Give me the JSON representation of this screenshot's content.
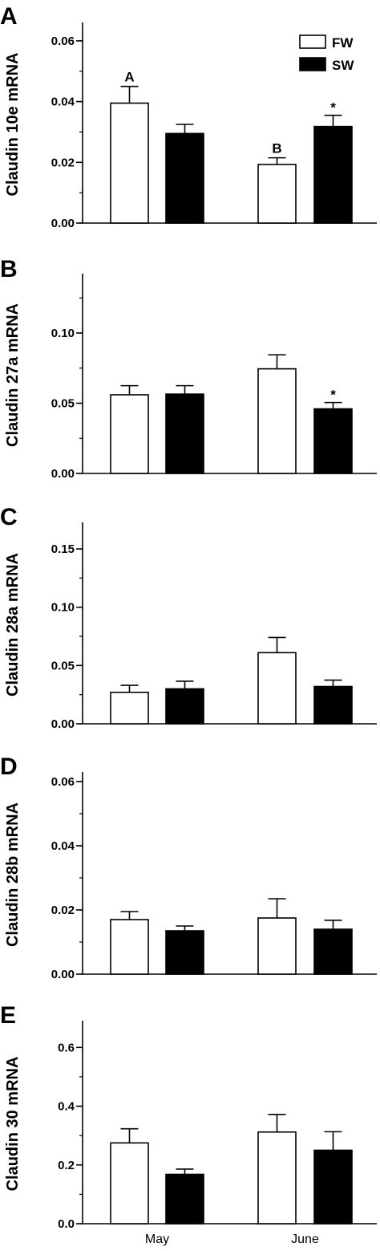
{
  "chart_data": [
    {
      "type": "bar",
      "panel": "A",
      "ylabel": "Claudin 10e mRNA",
      "categories": [
        "May",
        "June"
      ],
      "ylim": [
        0,
        0.065
      ],
      "yticks": [
        "0.00",
        "0.02",
        "0.04",
        "0.06"
      ],
      "ytick_values": [
        0,
        0.02,
        0.04,
        0.06
      ],
      "minor_step": 0.01,
      "series": [
        {
          "name": "FW",
          "fill": "#ffffff",
          "values": [
            0.0395,
            0.0193
          ],
          "errors": [
            0.0055,
            0.0022
          ],
          "annotations": [
            "A",
            "B"
          ]
        },
        {
          "name": "SW",
          "fill": "#000000",
          "values": [
            0.0295,
            0.0318
          ],
          "errors": [
            0.003,
            0.0037
          ],
          "annotations": [
            "",
            "*"
          ]
        }
      ],
      "legend": {
        "position": "top-right"
      }
    },
    {
      "type": "bar",
      "panel": "B",
      "ylabel": "Claudin 27a mRNA",
      "categories": [
        "May",
        "June"
      ],
      "ylim": [
        0,
        0.14
      ],
      "yticks": [
        "0.00",
        "0.05",
        "0.10"
      ],
      "ytick_values": [
        0,
        0.05,
        0.1
      ],
      "minor_step": 0.025,
      "series": [
        {
          "name": "FW",
          "fill": "#ffffff",
          "values": [
            0.056,
            0.0745
          ],
          "errors": [
            0.0065,
            0.01
          ],
          "annotations": [
            "",
            ""
          ]
        },
        {
          "name": "SW",
          "fill": "#000000",
          "values": [
            0.0565,
            0.046
          ],
          "errors": [
            0.006,
            0.0045
          ],
          "annotations": [
            "",
            "*"
          ]
        }
      ]
    },
    {
      "type": "bar",
      "panel": "C",
      "ylabel": "Claudin 28a mRNA",
      "categories": [
        "May",
        "June"
      ],
      "ylim": [
        0,
        0.17
      ],
      "yticks": [
        "0.00",
        "0.05",
        "0.10",
        "0.15"
      ],
      "ytick_values": [
        0,
        0.05,
        0.1,
        0.15
      ],
      "minor_step": 0.025,
      "series": [
        {
          "name": "FW",
          "fill": "#ffffff",
          "values": [
            0.027,
            0.061
          ],
          "errors": [
            0.006,
            0.013
          ],
          "annotations": [
            "",
            ""
          ]
        },
        {
          "name": "SW",
          "fill": "#000000",
          "values": [
            0.03,
            0.032
          ],
          "errors": [
            0.0065,
            0.0055
          ],
          "annotations": [
            "",
            ""
          ]
        }
      ]
    },
    {
      "type": "bar",
      "panel": "D",
      "ylabel": "Claudin 28b mRNA",
      "categories": [
        "May",
        "June"
      ],
      "ylim": [
        0,
        0.062
      ],
      "yticks": [
        "0.00",
        "0.02",
        "0.04",
        "0.06"
      ],
      "ytick_values": [
        0,
        0.02,
        0.04,
        0.06
      ],
      "minor_step": 0.01,
      "series": [
        {
          "name": "FW",
          "fill": "#ffffff",
          "values": [
            0.017,
            0.0175
          ],
          "errors": [
            0.0025,
            0.006
          ],
          "annotations": [
            "",
            ""
          ]
        },
        {
          "name": "SW",
          "fill": "#000000",
          "values": [
            0.0135,
            0.014
          ],
          "errors": [
            0.0015,
            0.0028
          ],
          "annotations": [
            "",
            ""
          ]
        }
      ]
    },
    {
      "type": "bar",
      "panel": "E",
      "ylabel": "Claudin 30 mRNA",
      "categories": [
        "May",
        "June"
      ],
      "ylim": [
        0,
        0.68
      ],
      "yticks": [
        "0.0",
        "0.2",
        "0.4",
        "0.6"
      ],
      "ytick_values": [
        0,
        0.2,
        0.4,
        0.6
      ],
      "minor_step": 0.1,
      "series": [
        {
          "name": "FW",
          "fill": "#ffffff",
          "values": [
            0.275,
            0.312
          ],
          "errors": [
            0.048,
            0.06
          ],
          "annotations": [
            "",
            ""
          ]
        },
        {
          "name": "SW",
          "fill": "#000000",
          "values": [
            0.168,
            0.25
          ],
          "errors": [
            0.018,
            0.063
          ],
          "annotations": [
            "",
            ""
          ]
        }
      ],
      "show_category_labels": true
    }
  ]
}
